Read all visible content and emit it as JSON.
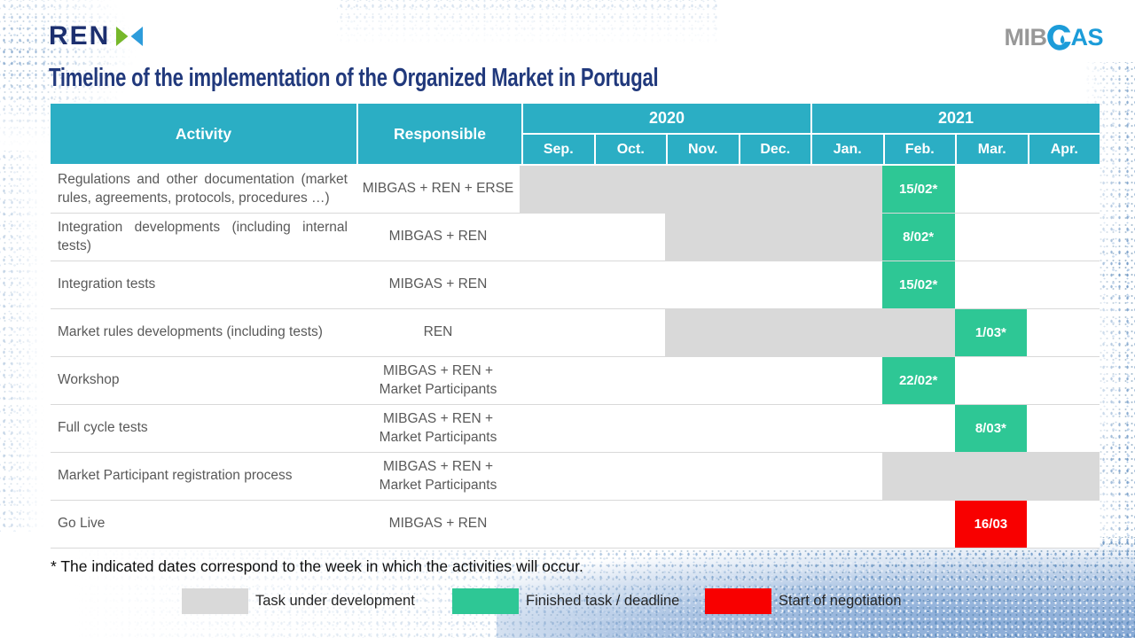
{
  "logos": {
    "ren": {
      "text": "REN",
      "icon": "ren-bowtie-icon",
      "navy": "#1C2F6F",
      "icon_green": "#76B82A",
      "icon_blue": "#2D9CDB"
    },
    "mibgas": {
      "prefix": "MIB",
      "suffix": "AS",
      "icon": "gas-drop-icon",
      "gray": "#989898",
      "blue": "#1C9CD9"
    }
  },
  "title": "Timeline of the implementation of the Organized Market in Portugal",
  "table": {
    "headers": {
      "activity": "Activity",
      "responsible": "Responsible"
    },
    "years": [
      "2020",
      "2021"
    ],
    "months": [
      "Sep.",
      "Oct.",
      "Nov.",
      "Dec.",
      "Jan.",
      "Feb.",
      "Mar.",
      "Apr."
    ],
    "rows": [
      {
        "activity": "Regulations and other documentation (market rules, agreements, protocols, procedures …)",
        "responsible": [
          "MIBGAS + REN + ERSE"
        ],
        "bars": [
          {
            "type": "development",
            "start": 0,
            "end": 4
          },
          {
            "type": "finished",
            "start": 5,
            "end": 5,
            "label": "15/02*"
          }
        ]
      },
      {
        "activity": "Integration developments (including internal tests)",
        "responsible": [
          "MIBGAS + REN"
        ],
        "bars": [
          {
            "type": "development",
            "start": 2,
            "end": 4
          },
          {
            "type": "finished",
            "start": 5,
            "end": 5,
            "label": "8/02*"
          }
        ]
      },
      {
        "activity": "Integration tests",
        "responsible": [
          "MIBGAS + REN"
        ],
        "bars": [
          {
            "type": "finished",
            "start": 5,
            "end": 5,
            "label": "15/02*"
          }
        ]
      },
      {
        "activity": "Market rules developments (including tests)",
        "responsible": [
          "REN"
        ],
        "bars": [
          {
            "type": "development",
            "start": 2,
            "end": 5
          },
          {
            "type": "finished",
            "start": 6,
            "end": 6,
            "label": "1/03*"
          }
        ]
      },
      {
        "activity": "Workshop",
        "responsible": [
          "MIBGAS + REN +",
          "Market Participants"
        ],
        "bars": [
          {
            "type": "finished",
            "start": 5,
            "end": 5,
            "label": "22/02*"
          }
        ]
      },
      {
        "activity": "Full cycle tests",
        "responsible": [
          "MIBGAS + REN +",
          "Market Participants"
        ],
        "bars": [
          {
            "type": "finished",
            "start": 6,
            "end": 6,
            "label": "8/03*"
          }
        ]
      },
      {
        "activity": "Market Participant registration process",
        "responsible": [
          "MIBGAS + REN +",
          "Market Participants"
        ],
        "bars": [
          {
            "type": "development",
            "start": 5,
            "end": 7
          }
        ]
      },
      {
        "activity": "Go Live",
        "responsible": [
          "MIBGAS + REN"
        ],
        "bars": [
          {
            "type": "negotiation",
            "start": 6,
            "end": 6,
            "label": "16/03"
          }
        ]
      }
    ]
  },
  "footnote": "* The indicated dates correspond to the week in which the activities will occur.",
  "legend": [
    {
      "type": "development",
      "label": "Task under development"
    },
    {
      "type": "finished",
      "label": "Finished task / deadline"
    },
    {
      "type": "negotiation",
      "label": "Start of negotiation"
    }
  ],
  "colors": {
    "header_teal": "#2BAEC4",
    "development": "#D9D9D9",
    "finished": "#2EC795",
    "negotiation": "#F80000",
    "title_navy": "#21397C"
  }
}
